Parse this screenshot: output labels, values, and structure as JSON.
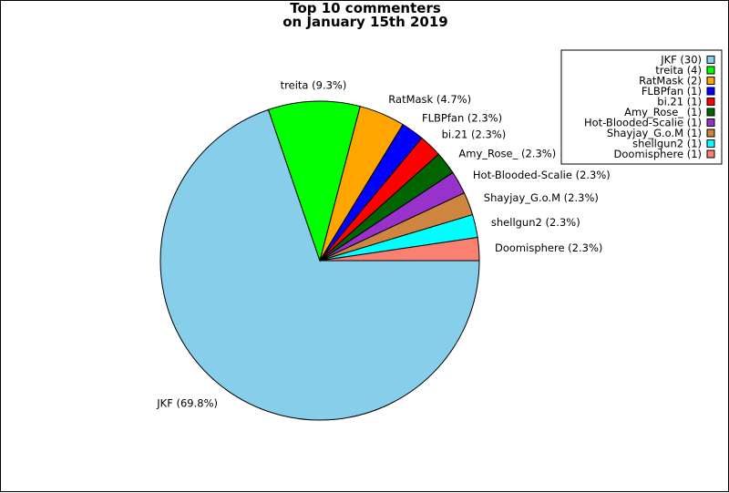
{
  "chart_data": {
    "type": "pie",
    "title_line1": "Top 10 commenters",
    "title_line2": "on January 15th 2019",
    "slices": [
      {
        "name": "JKF",
        "count": 30,
        "percent_label": "JKF (69.8%)",
        "legend_label": "JKF (30)",
        "color": "#87CEEB"
      },
      {
        "name": "treita",
        "count": 4,
        "percent_label": "treita (9.3%)",
        "legend_label": "treita (4)",
        "color": "#00FF00"
      },
      {
        "name": "RatMask",
        "count": 2,
        "percent_label": "RatMask (4.7%)",
        "legend_label": "RatMask (2)",
        "color": "#FFA500"
      },
      {
        "name": "FLBPfan",
        "count": 1,
        "percent_label": "FLBPfan (2.3%)",
        "legend_label": "FLBPfan (1)",
        "color": "#0000FF"
      },
      {
        "name": "bi.21",
        "count": 1,
        "percent_label": "bi.21 (2.3%)",
        "legend_label": "bi.21 (1)",
        "color": "#FF0000"
      },
      {
        "name": "Amy_Rose_",
        "count": 1,
        "percent_label": "Amy_Rose_ (2.3%)",
        "legend_label": "Amy_Rose_ (1)",
        "color": "#006400"
      },
      {
        "name": "Hot-Blooded-Scalie",
        "count": 1,
        "percent_label": "Hot-Blooded-Scalie (2.3%)",
        "legend_label": "Hot-Blooded-Scalie (1)",
        "color": "#9932CC"
      },
      {
        "name": "Shayjay_G.o.M",
        "count": 1,
        "percent_label": "Shayjay_G.o.M (2.3%)",
        "legend_label": "Shayjay_G.o.M (1)",
        "color": "#CD853F"
      },
      {
        "name": "shellgun2",
        "count": 1,
        "percent_label": "shellgun2 (2.3%)",
        "legend_label": "shellgun2 (1)",
        "color": "#00FFFF"
      },
      {
        "name": "Doomisphere",
        "count": 1,
        "percent_label": "Doomisphere (2.3%)",
        "legend_label": "Doomisphere (1)",
        "color": "#FA8072"
      }
    ],
    "start_angle_deg": 0,
    "direction": "clockwise",
    "legend_placement": "top-right"
  }
}
